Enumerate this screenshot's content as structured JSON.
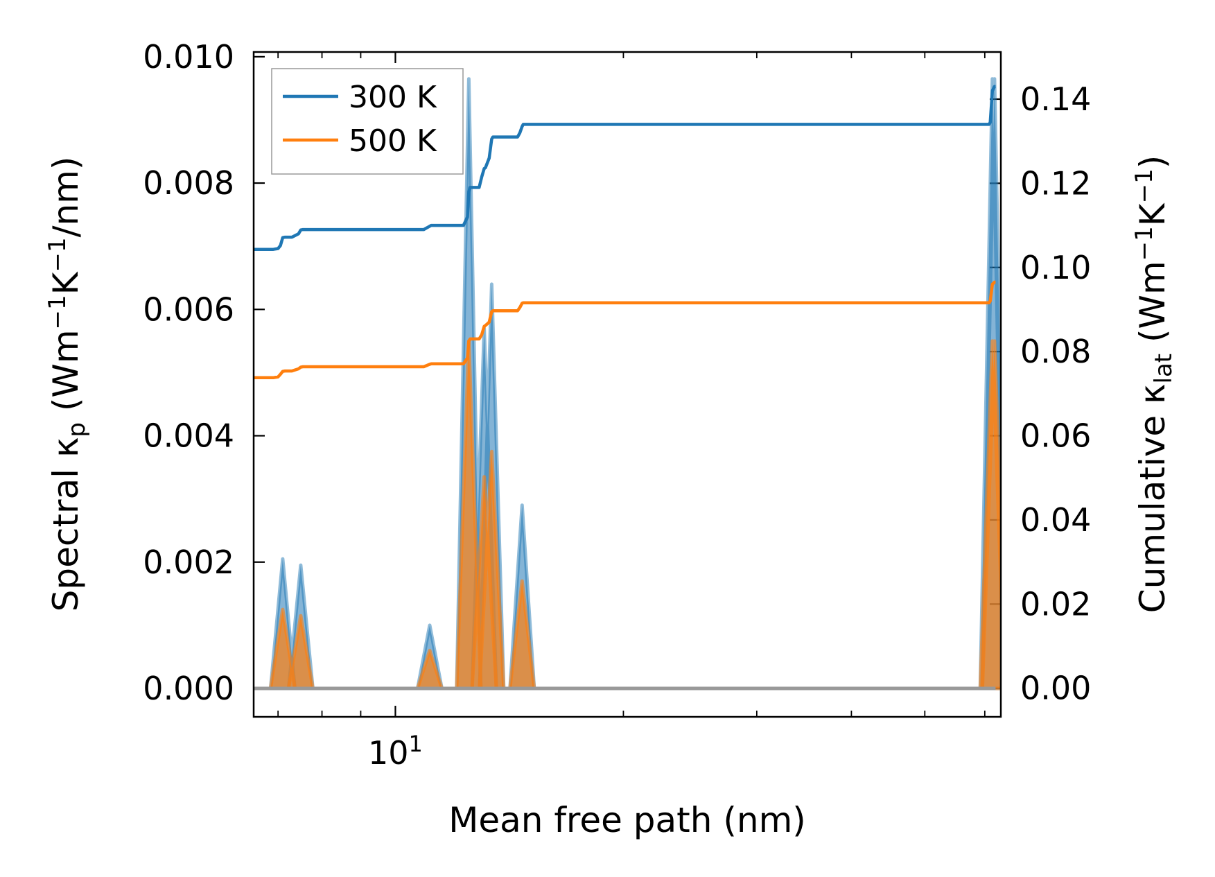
{
  "chart_data": {
    "type": "line",
    "xlabel": "Mean free path (nm)",
    "x_scale": "log",
    "xlim": [
      6.5,
      63
    ],
    "x_major_ticks": [
      {
        "value": 10,
        "base": "10",
        "exp": "1"
      }
    ],
    "x_minor_ticks": [
      7,
      8,
      9,
      20,
      30,
      40,
      50,
      60
    ],
    "left_axis": {
      "label_main": "Spectral κ",
      "label_sub": "p",
      "label_units_pre": " (Wm",
      "label_sup1": "−1",
      "label_units_mid": "K",
      "label_sup2": "−1",
      "label_units_post": "/nm)",
      "ylim": [
        -0.00045,
        0.010075
      ],
      "ticks": [
        "0.000",
        "0.002",
        "0.004",
        "0.006",
        "0.008",
        "0.010"
      ]
    },
    "right_axis": {
      "label_main": "Cumulative κ",
      "label_sub": "lat",
      "label_units_pre": " (Wm",
      "label_sup1": "−1",
      "label_units_mid": "K",
      "label_sup2": "−1",
      "label_units_post": ")",
      "ylim": [
        -0.0068,
        0.1512
      ],
      "ticks": [
        "0.00",
        "0.02",
        "0.04",
        "0.06",
        "0.08",
        "0.10",
        "0.12",
        "0.14"
      ]
    },
    "legend": {
      "position": "top-left",
      "entries": [
        "300 K",
        "500 K"
      ]
    },
    "colors": {
      "300 K": "#1f77b4",
      "500 K": "#ff7f0e"
    },
    "spectral_series": [
      {
        "name": "300 K",
        "baseline": [
          6.5,
          62
        ],
        "peaks": [
          [
            7.1,
            0.00205,
            0.08
          ],
          [
            7.5,
            0.00195,
            0.08
          ],
          [
            11.1,
            0.001,
            0.08
          ],
          [
            12.5,
            0.00965,
            0.08
          ],
          [
            13.1,
            0.0057,
            0.08
          ],
          [
            13.4,
            0.0064,
            0.08
          ],
          [
            14.7,
            0.0029,
            0.08
          ],
          [
            61.4,
            0.00965,
            0.08
          ],
          [
            61.8,
            0.00965,
            0.08
          ]
        ]
      },
      {
        "name": "500 K",
        "baseline": [
          6.5,
          62
        ],
        "peaks": [
          [
            7.1,
            0.00125,
            0.08
          ],
          [
            7.5,
            0.00115,
            0.08
          ],
          [
            11.1,
            0.0006,
            0.08
          ],
          [
            12.5,
            0.0055,
            0.08
          ],
          [
            13.1,
            0.00335,
            0.08
          ],
          [
            13.4,
            0.00375,
            0.08
          ],
          [
            14.7,
            0.0017,
            0.08
          ],
          [
            61.4,
            0.0055,
            0.08
          ],
          [
            61.8,
            0.0055,
            0.08
          ]
        ]
      }
    ],
    "cumulative_series": [
      {
        "name": "300 K",
        "x": [
          6.5,
          6.9,
          7.0,
          7.05,
          7.1,
          7.15,
          7.3,
          7.45,
          7.5,
          7.55,
          10.9,
          11.0,
          11.1,
          11.15,
          12.3,
          12.45,
          12.5,
          12.55,
          12.9,
          13.0,
          13.1,
          13.15,
          13.3,
          13.4,
          13.45,
          14.5,
          14.6,
          14.7,
          14.75,
          60.8,
          61.0,
          61.4,
          61.8,
          62.0
        ],
        "y": [
          0.1043,
          0.1043,
          0.1045,
          0.1052,
          0.1071,
          0.1072,
          0.1072,
          0.108,
          0.1089,
          0.109,
          0.109,
          0.1094,
          0.1098,
          0.11,
          0.11,
          0.112,
          0.118,
          0.119,
          0.119,
          0.1215,
          0.1235,
          0.1237,
          0.126,
          0.1305,
          0.131,
          0.131,
          0.132,
          0.1335,
          0.134,
          0.134,
          0.1345,
          0.142,
          0.143,
          0.143
        ]
      },
      {
        "name": "500 K",
        "x": [
          6.5,
          6.9,
          7.0,
          7.05,
          7.1,
          7.15,
          7.3,
          7.45,
          7.5,
          7.55,
          10.9,
          11.0,
          11.1,
          11.15,
          12.3,
          12.45,
          12.5,
          12.55,
          12.9,
          13.0,
          13.1,
          13.15,
          13.3,
          13.4,
          13.45,
          14.5,
          14.6,
          14.7,
          14.75,
          60.8,
          61.0,
          61.4,
          61.8,
          62.0
        ],
        "y": [
          0.0738,
          0.0738,
          0.074,
          0.0746,
          0.0753,
          0.0754,
          0.0754,
          0.0759,
          0.0763,
          0.0764,
          0.0764,
          0.0767,
          0.077,
          0.0771,
          0.0771,
          0.0785,
          0.0825,
          0.083,
          0.083,
          0.084,
          0.086,
          0.0862,
          0.087,
          0.0895,
          0.0897,
          0.0897,
          0.0905,
          0.0915,
          0.0916,
          0.0916,
          0.092,
          0.096,
          0.0965,
          0.0965
        ]
      }
    ]
  }
}
